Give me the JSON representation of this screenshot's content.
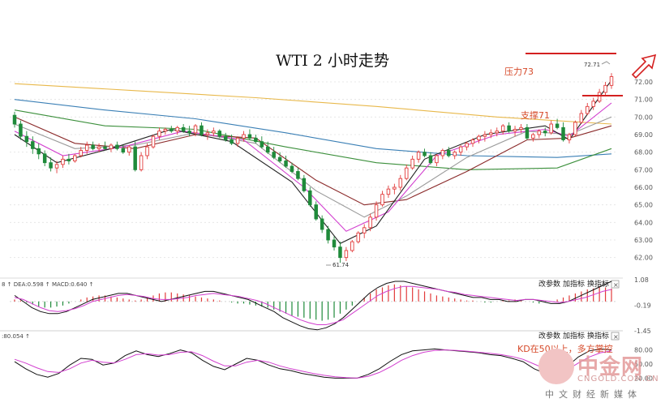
{
  "title": "WTI 2 小时走势",
  "annotations": {
    "resistance": "压力73",
    "support": "支撑71",
    "high_label": "72.71",
    "low_label": "61.74",
    "kd_note": "KD在50以上，多方掌控"
  },
  "colors": {
    "up": "#e23b3b",
    "down": "#1f8a3a",
    "ma_gold": "#e8b84a",
    "ma_blue": "#3a7fb5",
    "ma_green": "#3b8f3b",
    "ma_brown": "#8b2a2a",
    "ma_magenta": "#d23fcf",
    "ma_black": "#222222",
    "ma_gray": "#9a9a9a",
    "annot": "#d64a2a",
    "red_line": "#d42020"
  },
  "panels": {
    "macd": {
      "header": "8 ↑ DEA:0.598 ↑ MACD:0.640 ↑",
      "buttons": [
        "改参数",
        "加指标",
        "换指标"
      ],
      "close": "×",
      "ticks": [
        "1.08",
        "-0.19",
        "-1.45"
      ]
    },
    "kd": {
      "header": ":80.054 ↑",
      "buttons": [
        "改参数",
        "加指标",
        "换指标"
      ],
      "close": "×",
      "ticks": [
        "80.00",
        "50.00",
        "20.00"
      ]
    }
  },
  "watermark": {
    "brand": "中金网",
    "url": "CNGOLD.COM.CN",
    "sub": "中文财经新媒体"
  },
  "chart_data": {
    "type": "candlestick",
    "title": "WTI 2 小时走势",
    "y_ticks": [
      62.0,
      63.0,
      64.0,
      65.0,
      66.0,
      67.0,
      68.0,
      69.0,
      70.0,
      71.0,
      72.0
    ],
    "ylim": [
      61.2,
      72.6
    ],
    "x_count": 100,
    "candles": [
      [
        70.1,
        70.3,
        69.4,
        69.6
      ],
      [
        69.6,
        69.8,
        68.7,
        68.9
      ],
      [
        68.9,
        69.2,
        68.3,
        68.6
      ],
      [
        68.6,
        68.9,
        67.9,
        68.2
      ],
      [
        68.2,
        68.5,
        67.6,
        67.9
      ],
      [
        67.9,
        68.1,
        67.2,
        67.4
      ],
      [
        67.4,
        67.7,
        66.9,
        67.1
      ],
      [
        67.1,
        67.5,
        66.8,
        67.3
      ],
      [
        67.3,
        67.8,
        67.1,
        67.6
      ],
      [
        67.6,
        67.9,
        67.3,
        67.5
      ],
      [
        67.5,
        67.9,
        67.4,
        67.8
      ],
      [
        67.8,
        68.3,
        67.7,
        68.1
      ],
      [
        68.1,
        68.6,
        67.9,
        68.4
      ],
      [
        68.4,
        68.6,
        68.1,
        68.2
      ],
      [
        68.2,
        68.5,
        68.0,
        68.3
      ],
      [
        68.3,
        68.6,
        68.1,
        68.2
      ],
      [
        68.2,
        68.5,
        68.0,
        68.4
      ],
      [
        68.4,
        68.6,
        68.1,
        68.2
      ],
      [
        68.2,
        68.4,
        67.9,
        68.0
      ],
      [
        68.0,
        68.4,
        67.8,
        68.3
      ],
      [
        68.3,
        68.6,
        66.9,
        67.0
      ],
      [
        67.0,
        68.0,
        66.9,
        67.8
      ],
      [
        67.8,
        68.5,
        67.6,
        68.3
      ],
      [
        68.3,
        69.0,
        68.2,
        68.9
      ],
      [
        68.9,
        69.4,
        68.7,
        69.2
      ],
      [
        69.2,
        69.4,
        69.0,
        69.3
      ],
      [
        69.3,
        69.5,
        69.1,
        69.2
      ],
      [
        69.2,
        69.5,
        69.0,
        69.4
      ],
      [
        69.4,
        69.6,
        69.1,
        69.2
      ],
      [
        69.2,
        69.5,
        68.9,
        69.1
      ],
      [
        69.1,
        69.6,
        68.9,
        69.5
      ],
      [
        69.5,
        69.7,
        68.9,
        69.0
      ],
      [
        69.0,
        69.3,
        68.7,
        69.1
      ],
      [
        69.1,
        69.4,
        68.9,
        69.2
      ],
      [
        69.2,
        69.3,
        68.8,
        68.9
      ],
      [
        68.9,
        69.1,
        68.6,
        68.7
      ],
      [
        68.7,
        69.0,
        68.4,
        68.5
      ],
      [
        68.5,
        68.9,
        68.3,
        68.8
      ],
      [
        68.8,
        69.2,
        68.6,
        69.0
      ],
      [
        69.0,
        69.3,
        68.7,
        68.8
      ],
      [
        68.8,
        69.0,
        68.5,
        68.6
      ],
      [
        68.6,
        68.9,
        68.2,
        68.3
      ],
      [
        68.3,
        68.6,
        67.9,
        68.0
      ],
      [
        68.0,
        68.3,
        67.6,
        67.7
      ],
      [
        67.7,
        68.0,
        67.4,
        67.5
      ],
      [
        67.5,
        67.8,
        67.1,
        67.2
      ],
      [
        67.2,
        67.4,
        66.8,
        66.9
      ],
      [
        66.9,
        67.1,
        66.4,
        66.5
      ],
      [
        66.5,
        66.7,
        65.7,
        65.8
      ],
      [
        65.8,
        66.0,
        64.9,
        65.0
      ],
      [
        65.0,
        65.2,
        64.1,
        64.2
      ],
      [
        64.2,
        64.4,
        63.4,
        63.6
      ],
      [
        63.6,
        63.8,
        62.8,
        63.0
      ],
      [
        63.0,
        63.2,
        62.4,
        62.6
      ],
      [
        62.6,
        62.9,
        61.7,
        62.0
      ],
      [
        62.0,
        62.6,
        61.8,
        62.4
      ],
      [
        62.4,
        63.0,
        62.3,
        62.9
      ],
      [
        62.9,
        63.5,
        62.8,
        63.4
      ],
      [
        63.4,
        63.9,
        63.1,
        63.7
      ],
      [
        63.7,
        64.5,
        63.5,
        64.3
      ],
      [
        64.3,
        65.2,
        64.1,
        65.0
      ],
      [
        65.0,
        65.8,
        64.9,
        65.6
      ],
      [
        65.6,
        66.1,
        65.4,
        65.9
      ],
      [
        65.9,
        66.2,
        65.6,
        66.0
      ],
      [
        66.0,
        66.7,
        65.8,
        66.5
      ],
      [
        66.5,
        67.3,
        66.4,
        67.1
      ],
      [
        67.1,
        67.8,
        67.0,
        67.6
      ],
      [
        67.6,
        68.1,
        67.4,
        68.0
      ],
      [
        68.0,
        68.2,
        67.7,
        67.8
      ],
      [
        67.8,
        68.0,
        67.3,
        67.4
      ],
      [
        67.4,
        67.9,
        67.2,
        67.8
      ],
      [
        67.8,
        68.2,
        67.6,
        68.1
      ],
      [
        68.1,
        68.3,
        67.7,
        67.8
      ],
      [
        67.8,
        68.1,
        67.6,
        68.0
      ],
      [
        68.0,
        68.4,
        67.8,
        68.3
      ],
      [
        68.3,
        68.6,
        68.1,
        68.5
      ],
      [
        68.5,
        68.8,
        68.3,
        68.7
      ],
      [
        68.7,
        69.0,
        68.5,
        68.9
      ],
      [
        68.9,
        69.2,
        68.6,
        69.0
      ],
      [
        69.0,
        69.3,
        68.8,
        69.1
      ],
      [
        69.1,
        69.4,
        68.9,
        69.2
      ],
      [
        69.2,
        69.6,
        69.0,
        69.5
      ],
      [
        69.5,
        69.7,
        69.1,
        69.2
      ],
      [
        69.2,
        69.5,
        68.9,
        69.3
      ],
      [
        69.3,
        69.6,
        69.1,
        69.4
      ],
      [
        69.4,
        69.6,
        68.7,
        68.8
      ],
      [
        68.8,
        69.1,
        68.6,
        69.0
      ],
      [
        69.0,
        69.3,
        68.8,
        69.2
      ],
      [
        69.2,
        69.4,
        68.9,
        69.1
      ],
      [
        69.1,
        69.8,
        69.0,
        69.6
      ],
      [
        69.6,
        69.9,
        69.3,
        69.4
      ],
      [
        69.4,
        69.7,
        68.6,
        68.7
      ],
      [
        68.7,
        69.1,
        68.5,
        69.0
      ],
      [
        69.0,
        69.8,
        68.9,
        69.7
      ],
      [
        69.7,
        70.4,
        69.6,
        70.2
      ],
      [
        70.2,
        70.8,
        70.1,
        70.6
      ],
      [
        70.6,
        71.1,
        70.4,
        70.9
      ],
      [
        70.9,
        71.6,
        70.8,
        71.4
      ],
      [
        71.4,
        72.0,
        71.2,
        71.8
      ],
      [
        71.8,
        72.5,
        71.6,
        72.3
      ]
    ],
    "moving_averages": [
      {
        "color": "ma_gold",
        "points": [
          [
            0,
            71.9
          ],
          [
            20,
            71.5
          ],
          [
            40,
            71.1
          ],
          [
            60,
            70.6
          ],
          [
            80,
            70.0
          ],
          [
            99,
            69.6
          ]
        ]
      },
      {
        "color": "ma_blue",
        "points": [
          [
            0,
            71.0
          ],
          [
            15,
            70.4
          ],
          [
            30,
            69.9
          ],
          [
            45,
            69.1
          ],
          [
            60,
            68.2
          ],
          [
            75,
            67.8
          ],
          [
            90,
            67.7
          ],
          [
            99,
            67.9
          ]
        ]
      },
      {
        "color": "ma_green",
        "points": [
          [
            0,
            70.4
          ],
          [
            15,
            69.5
          ],
          [
            30,
            69.3
          ],
          [
            45,
            68.3
          ],
          [
            60,
            67.4
          ],
          [
            75,
            67.0
          ],
          [
            90,
            67.1
          ],
          [
            99,
            68.2
          ]
        ]
      },
      {
        "color": "ma_brown",
        "points": [
          [
            0,
            70.0
          ],
          [
            10,
            68.5
          ],
          [
            20,
            68.2
          ],
          [
            30,
            69.0
          ],
          [
            40,
            68.8
          ],
          [
            50,
            66.4
          ],
          [
            58,
            65.0
          ],
          [
            65,
            65.3
          ],
          [
            75,
            66.9
          ],
          [
            85,
            68.7
          ],
          [
            92,
            68.8
          ],
          [
            99,
            69.5
          ]
        ]
      },
      {
        "color": "ma_gray",
        "points": [
          [
            0,
            69.6
          ],
          [
            10,
            68.2
          ],
          [
            20,
            68.4
          ],
          [
            30,
            69.1
          ],
          [
            40,
            68.5
          ],
          [
            50,
            65.8
          ],
          [
            58,
            64.3
          ],
          [
            65,
            65.5
          ],
          [
            75,
            67.7
          ],
          [
            85,
            69.2
          ],
          [
            92,
            69.0
          ],
          [
            99,
            70.0
          ]
        ]
      },
      {
        "color": "ma_magenta",
        "points": [
          [
            0,
            69.2
          ],
          [
            8,
            67.8
          ],
          [
            18,
            68.3
          ],
          [
            28,
            69.2
          ],
          [
            38,
            68.7
          ],
          [
            48,
            66.0
          ],
          [
            55,
            63.5
          ],
          [
            62,
            64.6
          ],
          [
            70,
            67.8
          ],
          [
            80,
            69.0
          ],
          [
            88,
            69.3
          ],
          [
            92,
            68.9
          ],
          [
            99,
            70.8
          ]
        ]
      },
      {
        "color": "ma_black",
        "points": [
          [
            0,
            69.0
          ],
          [
            7,
            67.4
          ],
          [
            16,
            68.2
          ],
          [
            26,
            69.3
          ],
          [
            36,
            68.6
          ],
          [
            46,
            66.3
          ],
          [
            54,
            62.8
          ],
          [
            60,
            63.8
          ],
          [
            68,
            67.6
          ],
          [
            78,
            69.0
          ],
          [
            88,
            69.5
          ],
          [
            92,
            68.7
          ],
          [
            99,
            72.1
          ]
        ]
      }
    ],
    "macd": {
      "range": [
        -1.45,
        1.08
      ],
      "histogram": [
        0.1,
        0.05,
        -0.05,
        -0.15,
        -0.25,
        -0.3,
        -0.3,
        -0.25,
        -0.2,
        -0.1,
        0.0,
        0.1,
        0.2,
        0.25,
        0.3,
        0.3,
        0.25,
        0.2,
        0.15,
        0.1,
        0.05,
        0.1,
        0.2,
        0.3,
        0.4,
        0.45,
        0.45,
        0.4,
        0.35,
        0.3,
        0.25,
        0.2,
        0.15,
        0.1,
        0.05,
        0.0,
        -0.05,
        -0.1,
        -0.1,
        -0.15,
        -0.2,
        -0.25,
        -0.3,
        -0.4,
        -0.5,
        -0.6,
        -0.7,
        -0.75,
        -0.8,
        -0.85,
        -0.9,
        -0.95,
        -0.9,
        -0.8,
        -0.6,
        -0.4,
        -0.2,
        0.0,
        0.2,
        0.4,
        0.6,
        0.7,
        0.8,
        0.85,
        0.8,
        0.75,
        0.7,
        0.6,
        0.5,
        0.4,
        0.3,
        0.25,
        0.2,
        0.15,
        0.1,
        0.05,
        0.05,
        0.0,
        -0.05,
        -0.05,
        0.0,
        0.05,
        0.05,
        0.1,
        0.05,
        0.0,
        -0.05,
        -0.1,
        -0.05,
        0.0,
        0.1,
        0.2,
        0.3,
        0.4,
        0.5,
        0.6,
        0.65,
        0.7,
        0.7,
        0.64
      ],
      "dif": [
        0.3,
        0.0,
        -0.3,
        -0.5,
        -0.6,
        -0.6,
        -0.5,
        -0.3,
        -0.1,
        0.1,
        0.2,
        0.3,
        0.4,
        0.4,
        0.3,
        0.2,
        0.1,
        0.0,
        0.1,
        0.2,
        0.3,
        0.4,
        0.5,
        0.5,
        0.4,
        0.3,
        0.2,
        0.1,
        -0.1,
        -0.3,
        -0.5,
        -0.8,
        -1.0,
        -1.2,
        -1.35,
        -1.4,
        -1.3,
        -1.1,
        -0.8,
        -0.4,
        0.0,
        0.4,
        0.7,
        0.9,
        1.0,
        1.0,
        0.9,
        0.8,
        0.7,
        0.6,
        0.5,
        0.4,
        0.3,
        0.2,
        0.2,
        0.1,
        0.1,
        0.0,
        0.0,
        0.1,
        0.1,
        0.0,
        -0.1,
        -0.1,
        0.0,
        0.2,
        0.4,
        0.6,
        0.8,
        1.0
      ],
      "dea": [
        0.2,
        0.1,
        -0.1,
        -0.3,
        -0.45,
        -0.5,
        -0.45,
        -0.35,
        -0.2,
        0.0,
        0.1,
        0.2,
        0.3,
        0.35,
        0.3,
        0.25,
        0.15,
        0.1,
        0.1,
        0.15,
        0.2,
        0.3,
        0.35,
        0.4,
        0.35,
        0.3,
        0.25,
        0.15,
        0.05,
        -0.1,
        -0.3,
        -0.5,
        -0.7,
        -0.9,
        -1.05,
        -1.15,
        -1.15,
        -1.05,
        -0.9,
        -0.6,
        -0.3,
        0.0,
        0.3,
        0.5,
        0.65,
        0.75,
        0.75,
        0.7,
        0.65,
        0.6,
        0.5,
        0.45,
        0.35,
        0.3,
        0.25,
        0.2,
        0.15,
        0.1,
        0.05,
        0.1,
        0.1,
        0.05,
        0.0,
        -0.05,
        0.0,
        0.1,
        0.2,
        0.35,
        0.5,
        0.6
      ]
    },
    "kd": {
      "range": [
        0,
        100
      ],
      "k": [
        55,
        40,
        28,
        22,
        30,
        48,
        62,
        60,
        48,
        52,
        68,
        78,
        70,
        66,
        72,
        80,
        74,
        58,
        45,
        38,
        50,
        62,
        58,
        48,
        40,
        36,
        30,
        26,
        22,
        20,
        20,
        20,
        28,
        40,
        56,
        70,
        78,
        80,
        82,
        80,
        78,
        76,
        74,
        70,
        68,
        62,
        55,
        40,
        30,
        28,
        45,
        65,
        78,
        82,
        80
      ],
      "d": [
        60,
        52,
        42,
        34,
        32,
        40,
        52,
        58,
        54,
        52,
        60,
        70,
        72,
        69,
        70,
        75,
        76,
        68,
        56,
        46,
        46,
        54,
        58,
        54,
        46,
        40,
        35,
        30,
        26,
        23,
        21,
        20,
        24,
        32,
        44,
        58,
        68,
        75,
        79,
        80,
        79,
        77,
        75,
        73,
        70,
        66,
        60,
        50,
        40,
        34,
        38,
        52,
        65,
        74,
        78
      ]
    }
  }
}
